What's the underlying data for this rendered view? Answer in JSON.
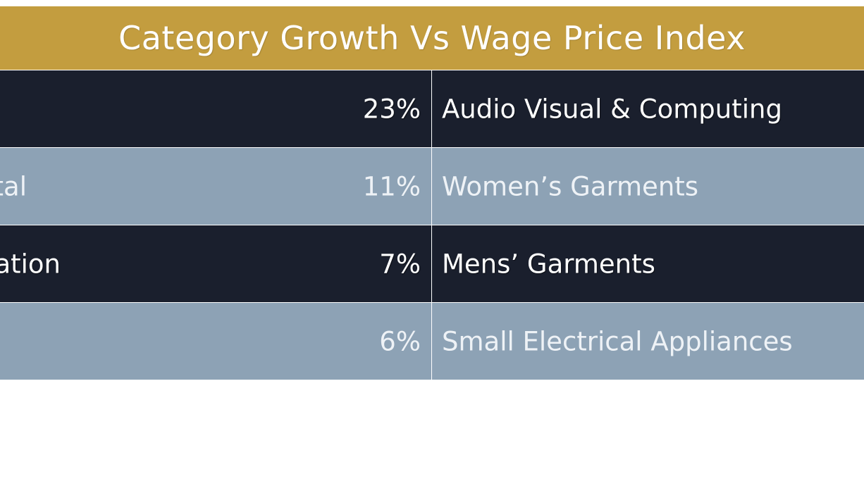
{
  "title": "Category Growth Vs Wage Price Index",
  "colors": {
    "title_bar": "#c39d3f",
    "row_dark": "#1a1f2d",
    "row_light": "#8da2b5",
    "text_light": "#ffffff"
  },
  "rows": [
    {
      "left_label": "",
      "percent": "23%",
      "category": "Audio Visual & Computing"
    },
    {
      "left_label": "tal",
      "percent": "11%",
      "category": "Women’s Garments"
    },
    {
      "left_label": "ation",
      "percent": "7%",
      "category": "Mens’ Garments"
    },
    {
      "left_label": "",
      "percent": "6%",
      "category": "Small Electrical Appliances"
    }
  ]
}
